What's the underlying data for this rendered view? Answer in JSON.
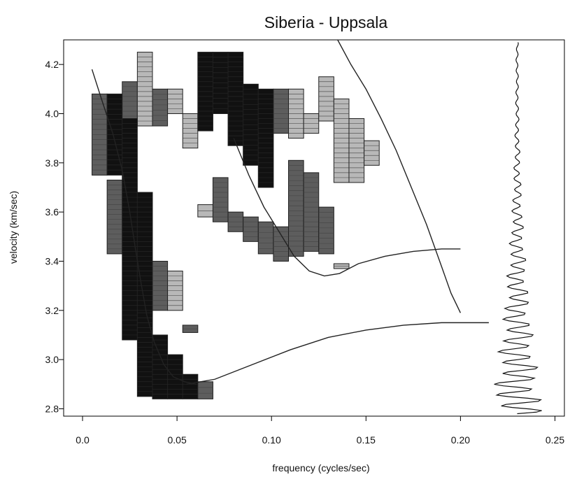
{
  "chart_data": {
    "type": "heatmap",
    "title": "Siberia - Uppsala",
    "xlabel": "frequency (cycles/sec)",
    "ylabel": "velocity (km/sec)",
    "xlim": [
      -0.01,
      0.255
    ],
    "ylim": [
      2.77,
      4.3
    ],
    "x_ticks": [
      0.0,
      0.05,
      0.1,
      0.15,
      0.2,
      0.25
    ],
    "x_tick_labels": [
      "0.0",
      "0.05",
      "0.10",
      "0.15",
      "0.20",
      "0.25"
    ],
    "y_ticks": [
      2.8,
      3.0,
      3.2,
      3.4,
      3.6,
      3.8,
      4.0,
      4.2
    ],
    "y_tick_labels": [
      "2.8",
      "3.0",
      "3.2",
      "3.4",
      "3.6",
      "3.8",
      "4.0",
      "4.2"
    ],
    "grid": false,
    "colors": {
      "dark_fill": "#111111",
      "mid_fill": "#5d5d5d",
      "light_fill": "#b8b8b8",
      "curve": "#222222"
    },
    "cell_size": {
      "dx": 0.008,
      "dy": 0.03
    },
    "cells": [
      {
        "x": 0.005,
        "y": 3.75,
        "h": 0.33,
        "level": "mid"
      },
      {
        "x": 0.013,
        "y": 3.75,
        "h": 0.33,
        "level": "dark"
      },
      {
        "x": 0.021,
        "y": 3.95,
        "h": 0.18,
        "level": "mid"
      },
      {
        "x": 0.029,
        "y": 3.95,
        "h": 0.3,
        "level": "light"
      },
      {
        "x": 0.037,
        "y": 3.95,
        "h": 0.15,
        "level": "mid"
      },
      {
        "x": 0.045,
        "y": 4.0,
        "h": 0.1,
        "level": "light"
      },
      {
        "x": 0.053,
        "y": 3.86,
        "h": 0.14,
        "level": "light"
      },
      {
        "x": 0.061,
        "y": 3.93,
        "h": 0.32,
        "level": "dark"
      },
      {
        "x": 0.069,
        "y": 4.0,
        "h": 0.25,
        "level": "dark"
      },
      {
        "x": 0.077,
        "y": 3.87,
        "h": 0.38,
        "level": "dark"
      },
      {
        "x": 0.085,
        "y": 3.79,
        "h": 0.33,
        "level": "dark"
      },
      {
        "x": 0.093,
        "y": 3.7,
        "h": 0.4,
        "level": "dark"
      },
      {
        "x": 0.101,
        "y": 3.92,
        "h": 0.18,
        "level": "mid"
      },
      {
        "x": 0.109,
        "y": 3.9,
        "h": 0.2,
        "level": "light"
      },
      {
        "x": 0.117,
        "y": 3.92,
        "h": 0.08,
        "level": "light"
      },
      {
        "x": 0.125,
        "y": 3.97,
        "h": 0.18,
        "level": "light"
      },
      {
        "x": 0.133,
        "y": 3.72,
        "h": 0.34,
        "level": "light"
      },
      {
        "x": 0.141,
        "y": 3.72,
        "h": 0.26,
        "level": "light"
      },
      {
        "x": 0.149,
        "y": 3.79,
        "h": 0.1,
        "level": "light"
      },
      {
        "x": 0.013,
        "y": 3.43,
        "h": 0.3,
        "level": "mid"
      },
      {
        "x": 0.021,
        "y": 3.08,
        "h": 0.9,
        "level": "dark"
      },
      {
        "x": 0.029,
        "y": 3.18,
        "h": 0.5,
        "level": "dark"
      },
      {
        "x": 0.037,
        "y": 3.2,
        "h": 0.2,
        "level": "mid"
      },
      {
        "x": 0.045,
        "y": 3.2,
        "h": 0.16,
        "level": "light"
      },
      {
        "x": 0.029,
        "y": 2.85,
        "h": 0.34,
        "level": "dark"
      },
      {
        "x": 0.037,
        "y": 2.84,
        "h": 0.26,
        "level": "dark"
      },
      {
        "x": 0.045,
        "y": 2.84,
        "h": 0.18,
        "level": "dark"
      },
      {
        "x": 0.053,
        "y": 2.84,
        "h": 0.1,
        "level": "dark"
      },
      {
        "x": 0.061,
        "y": 2.84,
        "h": 0.07,
        "level": "mid"
      },
      {
        "x": 0.053,
        "y": 3.11,
        "h": 0.03,
        "level": "mid"
      },
      {
        "x": 0.061,
        "y": 3.58,
        "h": 0.05,
        "level": "light"
      },
      {
        "x": 0.069,
        "y": 3.56,
        "h": 0.18,
        "level": "mid"
      },
      {
        "x": 0.077,
        "y": 3.52,
        "h": 0.08,
        "level": "mid"
      },
      {
        "x": 0.085,
        "y": 3.48,
        "h": 0.1,
        "level": "mid"
      },
      {
        "x": 0.093,
        "y": 3.43,
        "h": 0.13,
        "level": "mid"
      },
      {
        "x": 0.101,
        "y": 3.4,
        "h": 0.14,
        "level": "mid"
      },
      {
        "x": 0.109,
        "y": 3.42,
        "h": 0.39,
        "level": "mid"
      },
      {
        "x": 0.117,
        "y": 3.44,
        "h": 0.32,
        "level": "mid"
      },
      {
        "x": 0.125,
        "y": 3.43,
        "h": 0.19,
        "level": "mid"
      },
      {
        "x": 0.133,
        "y": 3.37,
        "h": 0.02,
        "level": "light"
      }
    ],
    "series": [
      {
        "type": "line",
        "x": [
          0.005,
          0.01,
          0.016,
          0.021,
          0.025,
          0.028,
          0.031,
          0.034,
          0.038,
          0.043,
          0.048,
          0.054,
          0.06
        ],
        "y": [
          4.18,
          4.06,
          3.92,
          3.77,
          3.6,
          3.45,
          3.31,
          3.18,
          3.07,
          2.98,
          2.93,
          2.91,
          2.9
        ],
        "stroke": "#222222"
      },
      {
        "type": "line",
        "x": [
          0.08,
          0.088,
          0.096,
          0.104,
          0.112,
          0.12,
          0.128,
          0.136,
          0.146,
          0.16,
          0.175,
          0.19,
          0.2
        ],
        "y": [
          3.9,
          3.75,
          3.62,
          3.52,
          3.42,
          3.36,
          3.34,
          3.35,
          3.39,
          3.42,
          3.44,
          3.45,
          3.45
        ],
        "stroke": "#222222"
      },
      {
        "type": "line",
        "x": [
          0.135,
          0.142,
          0.15,
          0.158,
          0.166,
          0.174,
          0.182,
          0.189,
          0.195,
          0.2
        ],
        "y": [
          4.3,
          4.2,
          4.1,
          3.98,
          3.85,
          3.7,
          3.55,
          3.4,
          3.27,
          3.19
        ],
        "stroke": "#222222"
      },
      {
        "type": "line",
        "x": [
          0.055,
          0.07,
          0.09,
          0.11,
          0.13,
          0.15,
          0.17,
          0.19,
          0.215
        ],
        "y": [
          2.9,
          2.92,
          2.98,
          3.04,
          3.09,
          3.12,
          3.14,
          3.15,
          3.15
        ],
        "stroke": "#222222"
      }
    ],
    "seismogram": {
      "x_center": 0.23,
      "y_min": 2.78,
      "y_max": 4.29,
      "amplitude": [
        0.0005,
        0.0007,
        0.001,
        0.0014,
        0.0018,
        0.0025,
        0.0035,
        0.0048,
        0.0062,
        0.0076,
        0.0092,
        0.011
      ]
    }
  }
}
